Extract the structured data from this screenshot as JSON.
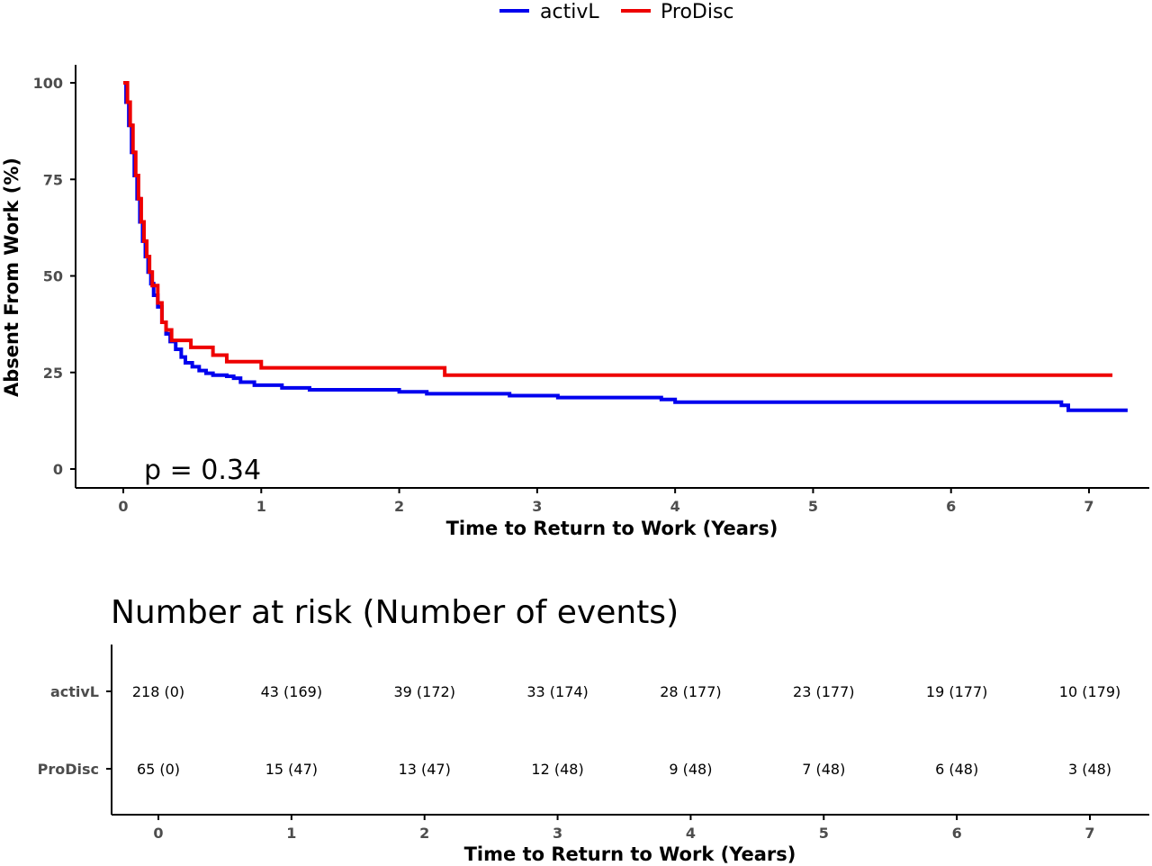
{
  "legend": {
    "items": [
      {
        "label": "activL",
        "color": "#0000ee"
      },
      {
        "label": "ProDisc",
        "color": "#ee0000"
      }
    ]
  },
  "chart_data": [
    {
      "type": "line",
      "subtype": "kaplan-meier",
      "title": "",
      "xlabel": "Time to Return to Work (Years)",
      "ylabel": "Absent From Work (%)",
      "xlim": [
        -0.35,
        7.45
      ],
      "ylim": [
        -5,
        105
      ],
      "xticks": [
        0,
        1,
        2,
        3,
        4,
        5,
        6,
        7
      ],
      "yticks": [
        0,
        25,
        50,
        75,
        100
      ],
      "grid": false,
      "legend_position": "top",
      "annotation": "p = 0.34",
      "series": [
        {
          "name": "activL",
          "color": "#0000ee",
          "x": [
            0,
            0.02,
            0.04,
            0.06,
            0.08,
            0.1,
            0.12,
            0.14,
            0.16,
            0.18,
            0.2,
            0.22,
            0.25,
            0.28,
            0.31,
            0.34,
            0.38,
            0.42,
            0.45,
            0.5,
            0.55,
            0.6,
            0.65,
            0.75,
            0.8,
            0.85,
            0.95,
            1.15,
            1.35,
            2.0,
            2.2,
            2.8,
            3.15,
            3.9,
            4.0,
            6.8,
            6.85,
            7.28
          ],
          "y": [
            100,
            95,
            89,
            82,
            76,
            70,
            64,
            59,
            55,
            51,
            48,
            45,
            42,
            38,
            35,
            33,
            31,
            29,
            27.5,
            26.5,
            25.5,
            24.8,
            24.3,
            24,
            23.5,
            22.5,
            21.7,
            21,
            20.5,
            20,
            19.5,
            19,
            18.5,
            18,
            17.3,
            16.5,
            15.2,
            15.2
          ]
        },
        {
          "name": "ProDisc",
          "color": "#ee0000",
          "x": [
            0,
            0.03,
            0.05,
            0.07,
            0.09,
            0.11,
            0.13,
            0.15,
            0.17,
            0.19,
            0.21,
            0.25,
            0.28,
            0.31,
            0.35,
            0.49,
            0.65,
            0.75,
            1.0,
            2.33,
            7.17
          ],
          "y": [
            100,
            95,
            89,
            82,
            76,
            70,
            64,
            59,
            55,
            51,
            47.5,
            43,
            38,
            36,
            33.3,
            31.5,
            29.5,
            27.8,
            26.2,
            24.3,
            24.3
          ]
        }
      ]
    },
    {
      "type": "table",
      "title": "Number at risk (Number of events)",
      "xlabel": "Time to Return to Work (Years)",
      "xticks": [
        0,
        1,
        2,
        3,
        4,
        5,
        6,
        7
      ],
      "rows": [
        {
          "label": "activL",
          "cells": [
            "218 (0)",
            "43 (169)",
            "39 (172)",
            "33 (174)",
            "28 (177)",
            "23 (177)",
            "19 (177)",
            "10 (179)"
          ]
        },
        {
          "label": "ProDisc",
          "cells": [
            "65 (0)",
            "15 (47)",
            "13 (47)",
            "12 (48)",
            "9 (48)",
            "7 (48)",
            "6 (48)",
            "3 (48)"
          ]
        }
      ]
    }
  ]
}
